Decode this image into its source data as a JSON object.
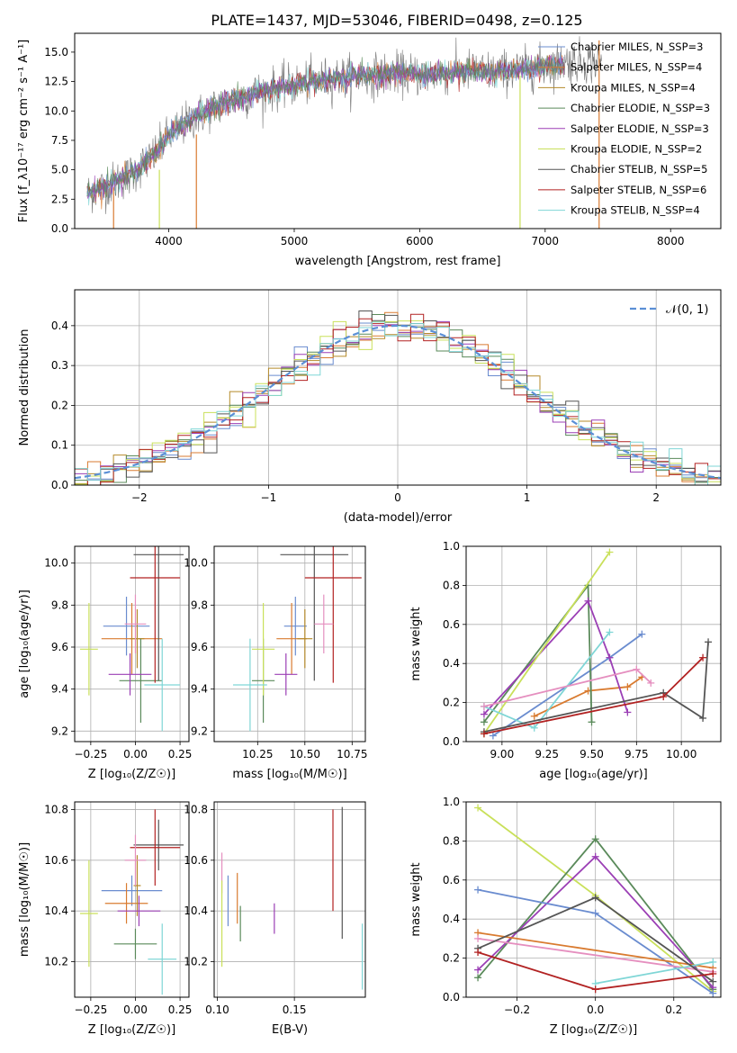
{
  "figure_title": "PLATE=1437, MJD=53046, FIBERID=0498, z=0.125",
  "series_colors": [
    "#6a8ccf",
    "#d97b30",
    "#b58a2a",
    "#5a8a5a",
    "#9b3fb5",
    "#c9e05a",
    "#555555",
    "#b22222",
    "#7fd6d6"
  ],
  "chart_data": [
    {
      "id": "spectrum",
      "type": "line",
      "xlabel": "wavelength [Angstrom, rest frame]",
      "ylabel": "Flux [f_λ10⁻¹⁷ erg cm⁻² s⁻¹ A⁻¹]",
      "xlim": [
        3250,
        8400
      ],
      "ylim": [
        0,
        16.6
      ],
      "xticks": [
        4000,
        5000,
        6000,
        7000,
        8000
      ],
      "yticks": [
        0.0,
        2.5,
        5.0,
        7.5,
        10.0,
        12.5,
        15.0
      ],
      "ytick_labels": [
        "0.0",
        "2.5",
        "5.0",
        "7.5",
        "10.0",
        "12.5",
        "15.0"
      ],
      "legend_placement": "upper right",
      "legend": [
        {
          "name": "Chabrier MILES, N_SSP=3",
          "color": "#6a8ccf"
        },
        {
          "name": "Salpeter MILES, N_SSP=4",
          "color": "#d97b30"
        },
        {
          "name": "Kroupa MILES, N_SSP=4",
          "color": "#b58a2a"
        },
        {
          "name": "Chabrier ELODIE, N_SSP=3",
          "color": "#5a8a5a"
        },
        {
          "name": "Salpeter ELODIE, N_SSP=3",
          "color": "#9b3fb5"
        },
        {
          "name": "Kroupa ELODIE, N_SSP=2",
          "color": "#c9e05a"
        },
        {
          "name": "Chabrier STELIB, N_SSP=5",
          "color": "#555555"
        },
        {
          "name": "Salpeter STELIB, N_SSP=6",
          "color": "#b22222"
        },
        {
          "name": "Kroupa STELIB, N_SSP=4",
          "color": "#7fd6d6"
        }
      ],
      "continuum": {
        "x": [
          3350,
          3500,
          3700,
          3900,
          4000,
          4200,
          4400,
          4600,
          4800,
          5000,
          5200,
          5400,
          5600,
          5800,
          6000,
          6200,
          6400,
          6600,
          6800,
          7000,
          7200
        ],
        "y": [
          3.0,
          3.6,
          4.6,
          6.4,
          7.9,
          9.4,
          10.5,
          11.2,
          11.8,
          12.2,
          12.6,
          12.9,
          13.0,
          13.2,
          13.1,
          13.2,
          13.4,
          13.3,
          13.5,
          13.8,
          14.2
        ]
      },
      "data_range": [
        3350,
        7450
      ],
      "vertical_spikes": [
        {
          "x": 3560,
          "ymin": 0,
          "ymax": 3.5,
          "color": "#d97b30"
        },
        {
          "x": 3925,
          "ymin": 0,
          "ymax": 5.0,
          "color": "#c9e05a"
        },
        {
          "x": 4220,
          "ymin": 0,
          "ymax": 8.0,
          "color": "#d97b30"
        },
        {
          "x": 6800,
          "ymin": 0,
          "ymax": 13.0,
          "color": "#c9e05a"
        },
        {
          "x": 7430,
          "ymin": 0,
          "ymax": 16.0,
          "color": "#d97b30"
        }
      ]
    },
    {
      "id": "residuals",
      "type": "line",
      "xlabel": "(data-model)/error",
      "ylabel": "Normed distribution",
      "xlim": [
        -2.5,
        2.5
      ],
      "ylim": [
        0,
        0.49
      ],
      "xticks": [
        -2,
        -1,
        0,
        1,
        2
      ],
      "xtick_labels": [
        "−2",
        "−1",
        "0",
        "1",
        "2"
      ],
      "yticks": [
        0.0,
        0.1,
        0.2,
        0.3,
        0.4
      ],
      "ytick_labels": [
        "0.0",
        "0.1",
        "0.2",
        "0.3",
        "0.4"
      ],
      "grid": true,
      "legend_placement": "upper right",
      "legend": [
        {
          "name": "𝒩(0, 1)",
          "color": "#5b8fd6"
        }
      ],
      "bin_width": 0.1,
      "histogram_amplitude": 0.4
    },
    {
      "id": "age-vs-Z",
      "type": "scatter",
      "xlabel": "Z [log₁₀(Z/Z☉)]",
      "ylabel": "age  [log₁₀(age/yr)]",
      "xlim": [
        -0.34,
        0.3
      ],
      "ylim": [
        9.15,
        10.08
      ],
      "xticks": [
        -0.25,
        0.0,
        0.25
      ],
      "xtick_labels": [
        "−0.25",
        "0.00",
        "0.25"
      ],
      "yticks": [
        9.2,
        9.4,
        9.6,
        9.8,
        10.0
      ],
      "ytick_labels": [
        "9.2",
        "9.4",
        "9.6",
        "9.8",
        "10.0"
      ],
      "grid": true,
      "points": [
        {
          "x": -0.05,
          "y": 9.7,
          "xerr": 0.13,
          "yerr": 0.14,
          "color": "#6a8ccf"
        },
        {
          "x": -0.02,
          "y": 9.64,
          "xerr": 0.17,
          "yerr": 0.17,
          "color": "#d97b30"
        },
        {
          "x": 0.01,
          "y": 9.64,
          "xerr": 0.04,
          "yerr": 0.14,
          "color": "#b58a2a"
        },
        {
          "x": 0.03,
          "y": 9.44,
          "xerr": 0.12,
          "yerr": 0.2,
          "color": "#5a8a5a"
        },
        {
          "x": -0.03,
          "y": 9.47,
          "xerr": 0.12,
          "yerr": 0.1,
          "color": "#9b3fb5"
        },
        {
          "x": -0.26,
          "y": 9.59,
          "xerr": 0.05,
          "yerr": 0.22,
          "color": "#c9e05a"
        },
        {
          "x": 0.13,
          "y": 10.04,
          "xerr": 0.14,
          "yerr": 0.6,
          "color": "#555555"
        },
        {
          "x": 0.11,
          "y": 9.93,
          "xerr": 0.14,
          "yerr": 0.5,
          "color": "#b22222"
        },
        {
          "x": 0.15,
          "y": 9.42,
          "xerr": 0.1,
          "yerr": 0.22,
          "color": "#7fd6d6"
        },
        {
          "x": 0.0,
          "y": 9.71,
          "xerr": 0.06,
          "yerr": 0.14,
          "color": "#e58fbf"
        }
      ]
    },
    {
      "id": "age-vs-mass",
      "type": "scatter",
      "xlabel": "mass [log₁₀(M/M☉)]",
      "ylabel": "",
      "xlim": [
        10.02,
        10.82
      ],
      "ylim": [
        9.15,
        10.08
      ],
      "xticks": [
        10.25,
        10.5,
        10.75
      ],
      "xtick_labels": [
        "10.25",
        "10.50",
        "10.75"
      ],
      "yticks": [
        9.2,
        9.4,
        9.6,
        9.8,
        10.0
      ],
      "ytick_labels": [
        "9.2",
        "9.4",
        "9.6",
        "9.8",
        "10.0"
      ],
      "grid": true,
      "points": [
        {
          "x": 10.45,
          "y": 9.7,
          "xerr": 0.06,
          "yerr": 0.14,
          "color": "#6a8ccf"
        },
        {
          "x": 10.43,
          "y": 9.64,
          "xerr": 0.08,
          "yerr": 0.17,
          "color": "#d97b30"
        },
        {
          "x": 10.5,
          "y": 9.64,
          "xerr": 0.04,
          "yerr": 0.14,
          "color": "#b58a2a"
        },
        {
          "x": 10.28,
          "y": 9.44,
          "xerr": 0.06,
          "yerr": 0.2,
          "color": "#5a8a5a"
        },
        {
          "x": 10.4,
          "y": 9.47,
          "xerr": 0.06,
          "yerr": 0.1,
          "color": "#9b3fb5"
        },
        {
          "x": 10.28,
          "y": 9.59,
          "xerr": 0.06,
          "yerr": 0.22,
          "color": "#c9e05a"
        },
        {
          "x": 10.55,
          "y": 10.04,
          "xerr": 0.18,
          "yerr": 0.6,
          "color": "#555555"
        },
        {
          "x": 10.65,
          "y": 9.93,
          "xerr": 0.15,
          "yerr": 0.5,
          "color": "#b22222"
        },
        {
          "x": 10.21,
          "y": 9.42,
          "xerr": 0.09,
          "yerr": 0.22,
          "color": "#7fd6d6"
        },
        {
          "x": 10.6,
          "y": 9.71,
          "xerr": 0.05,
          "yerr": 0.14,
          "color": "#e58fbf"
        }
      ]
    },
    {
      "id": "weight-vs-age",
      "type": "line",
      "xlabel": "age  [log₁₀(age/yr)]",
      "ylabel": "mass weight",
      "xlim": [
        8.8,
        10.22
      ],
      "ylim": [
        0,
        1.0
      ],
      "xticks": [
        9.0,
        9.25,
        9.5,
        9.75,
        10.0
      ],
      "xtick_labels": [
        "9.00",
        "9.25",
        "9.50",
        "9.75",
        "10.00"
      ],
      "yticks": [
        0.0,
        0.2,
        0.4,
        0.6,
        0.8,
        1.0
      ],
      "ytick_labels": [
        "0.0",
        "0.2",
        "0.4",
        "0.6",
        "0.8",
        "1.0"
      ],
      "grid": true,
      "series": [
        {
          "color": "#6a8ccf",
          "x": [
            8.95,
            9.6,
            9.78
          ],
          "y": [
            0.03,
            0.43,
            0.55
          ]
        },
        {
          "color": "#d97b30",
          "x": [
            9.18,
            9.48,
            9.7,
            9.78
          ],
          "y": [
            0.13,
            0.26,
            0.28,
            0.33
          ]
        },
        {
          "color": "#5a8a5a",
          "x": [
            8.9,
            9.48,
            9.5
          ],
          "y": [
            0.1,
            0.8,
            0.1
          ]
        },
        {
          "color": "#9b3fb5",
          "x": [
            8.9,
            9.48,
            9.6,
            9.7
          ],
          "y": [
            0.14,
            0.72,
            0.43,
            0.15
          ]
        },
        {
          "color": "#c9e05a",
          "x": [
            8.9,
            9.6
          ],
          "y": [
            0.04,
            0.97
          ]
        },
        {
          "color": "#7fd6d6",
          "x": [
            8.9,
            9.18,
            9.6
          ],
          "y": [
            0.18,
            0.07,
            0.56
          ]
        },
        {
          "color": "#e58fbf",
          "x": [
            8.9,
            9.75,
            9.83
          ],
          "y": [
            0.18,
            0.37,
            0.3
          ]
        },
        {
          "color": "#555555",
          "x": [
            8.9,
            9.9,
            10.12,
            10.15
          ],
          "y": [
            0.05,
            0.25,
            0.12,
            0.51
          ]
        },
        {
          "color": "#b22222",
          "x": [
            8.9,
            9.9,
            10.12
          ],
          "y": [
            0.04,
            0.23,
            0.43
          ]
        }
      ]
    },
    {
      "id": "mass-vs-Z",
      "type": "scatter",
      "xlabel": "Z [log₁₀(Z/Z☉)]",
      "ylabel": "mass [log₁₀(M/M☉)]",
      "xlim": [
        -0.34,
        0.3
      ],
      "ylim": [
        10.06,
        10.83
      ],
      "xticks": [
        -0.25,
        0.0,
        0.25
      ],
      "xtick_labels": [
        "−0.25",
        "0.00",
        "0.25"
      ],
      "yticks": [
        10.2,
        10.4,
        10.6,
        10.8
      ],
      "ytick_labels": [
        "10.2",
        "10.4",
        "10.6",
        "10.8"
      ],
      "grid": true,
      "points": [
        {
          "x": -0.02,
          "y": 10.48,
          "xerr": 0.17,
          "yerr": 0.06,
          "color": "#6a8ccf"
        },
        {
          "x": -0.05,
          "y": 10.43,
          "xerr": 0.12,
          "yerr": 0.08,
          "color": "#d97b30"
        },
        {
          "x": 0.01,
          "y": 10.5,
          "xerr": 0.02,
          "yerr": 0.12,
          "color": "#b58a2a"
        },
        {
          "x": 0.0,
          "y": 10.27,
          "xerr": 0.12,
          "yerr": 0.06,
          "color": "#5a8a5a"
        },
        {
          "x": 0.02,
          "y": 10.4,
          "xerr": 0.12,
          "yerr": 0.06,
          "color": "#9b3fb5"
        },
        {
          "x": -0.26,
          "y": 10.39,
          "xerr": 0.05,
          "yerr": 0.21,
          "color": "#c9e05a"
        },
        {
          "x": 0.13,
          "y": 10.66,
          "xerr": 0.14,
          "yerr": 0.1,
          "color": "#555555"
        },
        {
          "x": 0.11,
          "y": 10.65,
          "xerr": 0.14,
          "yerr": 0.15,
          "color": "#b22222"
        },
        {
          "x": 0.15,
          "y": 10.21,
          "xerr": 0.08,
          "yerr": 0.14,
          "color": "#7fd6d6"
        },
        {
          "x": 0.0,
          "y": 10.6,
          "xerr": 0.06,
          "yerr": 0.1,
          "color": "#e58fbf"
        }
      ]
    },
    {
      "id": "mass-vs-EBV",
      "type": "scatter",
      "xlabel": "E(B-V)",
      "ylabel": "",
      "xlim": [
        0.098,
        0.196
      ],
      "ylim": [
        10.06,
        10.83
      ],
      "xticks": [
        0.1,
        0.15
      ],
      "xtick_labels": [
        "0.10",
        "0.15"
      ],
      "yticks": [
        10.2,
        10.4,
        10.6,
        10.8
      ],
      "ytick_labels": [
        "10.2",
        "10.4",
        "10.6",
        "10.8"
      ],
      "grid": true,
      "points": [
        {
          "x": 0.107,
          "y": 10.44,
          "xerr": 0,
          "yerr": 0.1,
          "color": "#6a8ccf"
        },
        {
          "x": 0.113,
          "y": 10.45,
          "xerr": 0,
          "yerr": 0.1,
          "color": "#d97b30"
        },
        {
          "x": 0.103,
          "y": 10.55,
          "xerr": 0,
          "yerr": 0.08,
          "color": "#e58fbf"
        },
        {
          "x": 0.115,
          "y": 10.35,
          "xerr": 0,
          "yerr": 0.07,
          "color": "#5a8a5a"
        },
        {
          "x": 0.137,
          "y": 10.37,
          "xerr": 0,
          "yerr": 0.06,
          "color": "#9b3fb5"
        },
        {
          "x": 0.103,
          "y": 10.35,
          "xerr": 0,
          "yerr": 0.17,
          "color": "#c9e05a"
        },
        {
          "x": 0.181,
          "y": 10.55,
          "xerr": 0,
          "yerr": 0.26,
          "color": "#555555"
        },
        {
          "x": 0.175,
          "y": 10.6,
          "xerr": 0,
          "yerr": 0.2,
          "color": "#b22222"
        },
        {
          "x": 0.194,
          "y": 10.22,
          "xerr": 0,
          "yerr": 0.13,
          "color": "#7fd6d6"
        }
      ]
    },
    {
      "id": "weight-vs-Z",
      "type": "line",
      "xlabel": "Z [log₁₀(Z/Z☉)]",
      "ylabel": "mass weight",
      "xlim": [
        -0.33,
        0.32
      ],
      "ylim": [
        0,
        1.0
      ],
      "xticks": [
        -0.2,
        0.0,
        0.2
      ],
      "xtick_labels": [
        "−0.2",
        "0.0",
        "0.2"
      ],
      "yticks": [
        0.0,
        0.2,
        0.4,
        0.6,
        0.8,
        1.0
      ],
      "ytick_labels": [
        "0.0",
        "0.2",
        "0.4",
        "0.6",
        "0.8",
        "1.0"
      ],
      "grid": true,
      "series": [
        {
          "color": "#c9e05a",
          "x": [
            -0.3,
            0.0,
            0.3
          ],
          "y": [
            0.97,
            0.52,
            0.03
          ]
        },
        {
          "color": "#5a8a5a",
          "x": [
            -0.3,
            0.0,
            0.3
          ],
          "y": [
            0.1,
            0.81,
            0.04
          ]
        },
        {
          "color": "#9b3fb5",
          "x": [
            -0.3,
            0.0,
            0.3
          ],
          "y": [
            0.14,
            0.72,
            0.05
          ]
        },
        {
          "color": "#6a8ccf",
          "x": [
            -0.3,
            0.0,
            0.3
          ],
          "y": [
            0.55,
            0.43,
            0.02
          ]
        },
        {
          "color": "#d97b30",
          "x": [
            -0.3,
            0.3
          ],
          "y": [
            0.33,
            0.15
          ]
        },
        {
          "color": "#e58fbf",
          "x": [
            -0.3,
            0.3
          ],
          "y": [
            0.3,
            0.13
          ]
        },
        {
          "color": "#7fd6d6",
          "x": [
            0.0,
            0.3
          ],
          "y": [
            0.07,
            0.18
          ]
        },
        {
          "color": "#555555",
          "x": [
            -0.3,
            0.0,
            0.3
          ],
          "y": [
            0.25,
            0.51,
            0.08
          ]
        },
        {
          "color": "#b22222",
          "x": [
            -0.3,
            0.0,
            0.3
          ],
          "y": [
            0.23,
            0.04,
            0.12
          ]
        }
      ]
    }
  ]
}
